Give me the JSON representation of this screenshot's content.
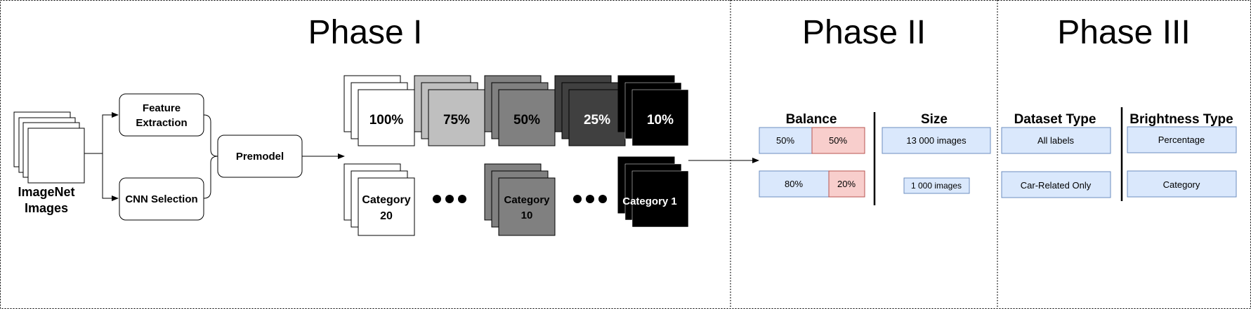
{
  "phases": {
    "phase1": "Phase I",
    "phase2": "Phase II",
    "phase3": "Phase III"
  },
  "phase1": {
    "input_label_line1": "ImageNet",
    "input_label_line2": "Images",
    "feature_extraction_line1": "Feature",
    "feature_extraction_line2": "Extraction",
    "cnn_selection": "CNN Selection",
    "premodel": "Premodel",
    "percent_stacks": [
      {
        "label": "100%",
        "fill": "#ffffff",
        "text_color": "#000000"
      },
      {
        "label": "75%",
        "fill": "#bfbfbf",
        "text_color": "#000000"
      },
      {
        "label": "50%",
        "fill": "#808080",
        "text_color": "#000000"
      },
      {
        "label": "25%",
        "fill": "#404040",
        "text_color": "#ffffff"
      },
      {
        "label": "10%",
        "fill": "#000000",
        "text_color": "#ffffff"
      }
    ],
    "category_stacks": [
      {
        "line1": "Category",
        "line2": "20",
        "fill": "#ffffff",
        "text_color": "#000000"
      },
      {
        "line1": "Category",
        "line2": "10",
        "fill": "#808080",
        "text_color": "#000000"
      },
      {
        "line1": "Category 1",
        "line2": "",
        "fill": "#000000",
        "text_color": "#ffffff"
      }
    ]
  },
  "phase2": {
    "balance_heading": "Balance",
    "size_heading": "Size",
    "balance_rows": [
      {
        "left": "50%",
        "right": "50%"
      },
      {
        "left": "80%",
        "right": "20%"
      }
    ],
    "size_large": "13 000 images",
    "size_small": "1 000 images"
  },
  "phase3": {
    "dataset_type_heading": "Dataset Type",
    "brightness_type_heading": "Brightness Type",
    "dataset_types": [
      "All labels",
      "Car-Related Only"
    ],
    "brightness_types": [
      "Percentage",
      "Category"
    ]
  },
  "colors": {
    "blue_fill": "#dae8fc",
    "blue_stroke": "#6c8ebf",
    "red_fill": "#f8cecc",
    "red_stroke": "#b85450"
  }
}
